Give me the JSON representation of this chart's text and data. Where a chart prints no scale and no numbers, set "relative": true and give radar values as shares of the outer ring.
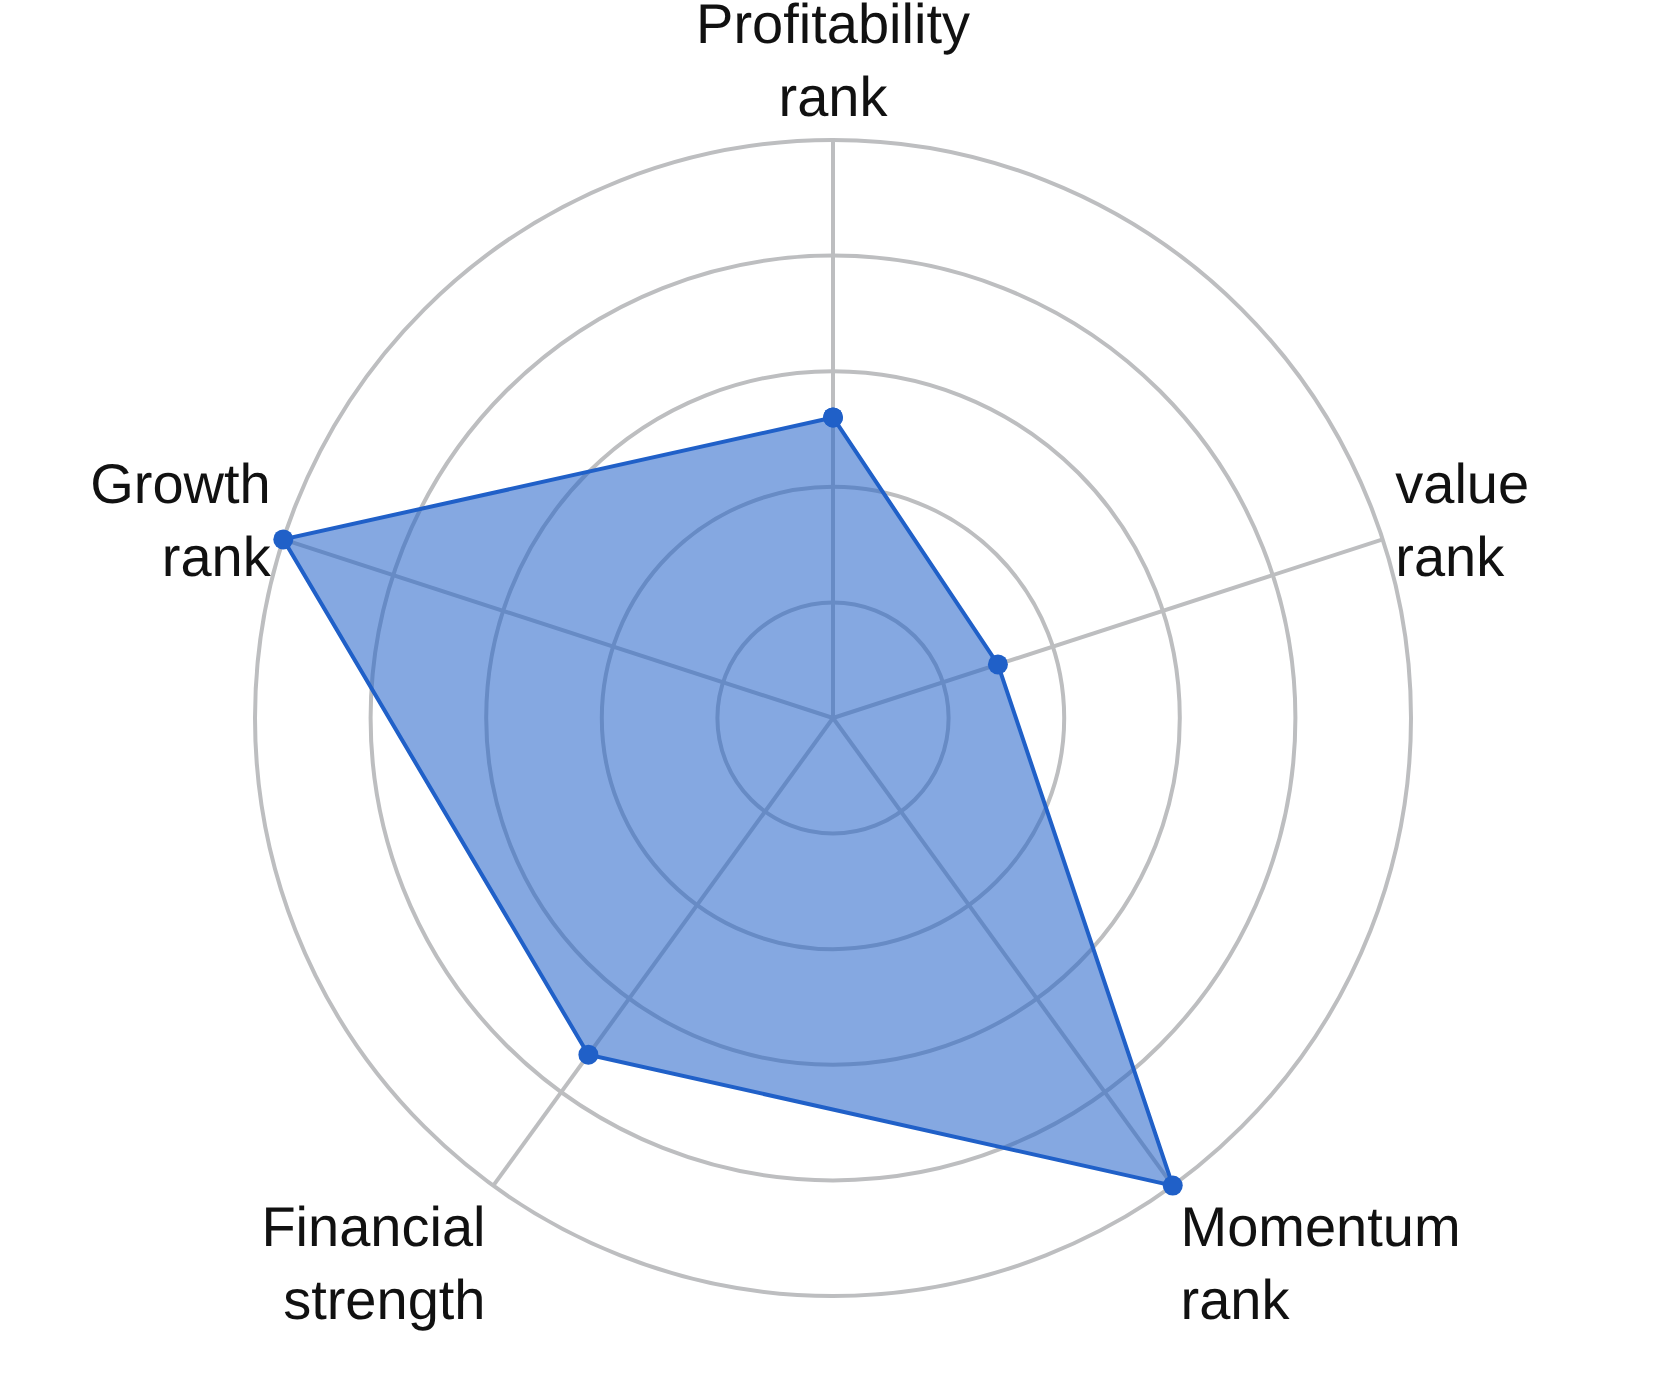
{
  "chart_data": {
    "type": "radar",
    "relative": true,
    "categories": [
      "Profitability\nrank",
      "value\nrank",
      "Momentum\nrank",
      "Financial\nstrength",
      "Growth\nrank"
    ],
    "series": [
      {
        "color": "#2060c8",
        "values": [
          0.52,
          0.3,
          1.0,
          0.72,
          1.0
        ]
      }
    ],
    "grid": true,
    "marker": "circle"
  }
}
